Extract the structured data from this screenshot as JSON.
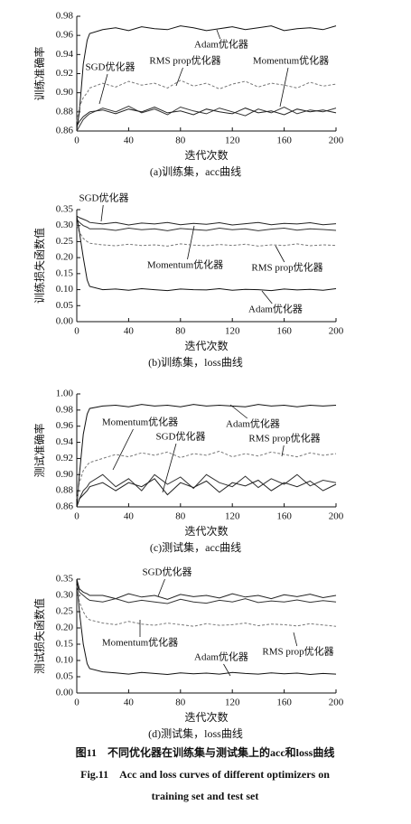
{
  "chart_data": [
    {
      "type": "line",
      "caption": "(a)训练集，acc曲线",
      "xlabel": "迭代次数",
      "ylabel": "训练准确率",
      "x": [
        0,
        2,
        5,
        8,
        10,
        20,
        30,
        40,
        50,
        60,
        70,
        80,
        90,
        100,
        110,
        120,
        130,
        140,
        150,
        160,
        170,
        180,
        190,
        200
      ],
      "xlim": [
        0,
        200
      ],
      "xticks": [
        0,
        40,
        80,
        120,
        160,
        200
      ],
      "ylim": [
        0.86,
        0.98
      ],
      "yticks": [
        0.86,
        0.88,
        {
          "value": 0.9,
          "label": "0.90"
        },
        0.92,
        0.94,
        0.96,
        0.98
      ],
      "series": [
        {
          "name": "Adam优化器",
          "color": "#111111",
          "style": "solid",
          "values": [
            0.862,
            0.88,
            0.93,
            0.955,
            0.962,
            0.966,
            0.968,
            0.965,
            0.969,
            0.967,
            0.966,
            0.97,
            0.968,
            0.965,
            0.967,
            0.969,
            0.966,
            0.968,
            0.97,
            0.965,
            0.967,
            0.968,
            0.966,
            0.97
          ]
        },
        {
          "name": "RMS prop优化器",
          "color": "#777777",
          "style": "dashed",
          "values": [
            0.87,
            0.885,
            0.895,
            0.9,
            0.905,
            0.91,
            0.906,
            0.912,
            0.908,
            0.91,
            0.905,
            0.913,
            0.907,
            0.91,
            0.904,
            0.909,
            0.912,
            0.906,
            0.91,
            0.908,
            0.905,
            0.911,
            0.907,
            0.909
          ]
        },
        {
          "name": "Momentum优化器",
          "color": "#333333",
          "style": "solid",
          "values": [
            0.86,
            0.865,
            0.872,
            0.876,
            0.878,
            0.884,
            0.88,
            0.886,
            0.879,
            0.883,
            0.877,
            0.885,
            0.881,
            0.878,
            0.884,
            0.88,
            0.876,
            0.883,
            0.879,
            0.885,
            0.878,
            0.882,
            0.88,
            0.884
          ]
        },
        {
          "name": "SGD优化器",
          "color": "#222222",
          "style": "solid",
          "values": [
            0.865,
            0.87,
            0.875,
            0.878,
            0.88,
            0.882,
            0.878,
            0.883,
            0.88,
            0.885,
            0.879,
            0.881,
            0.877,
            0.883,
            0.88,
            0.878,
            0.884,
            0.879,
            0.881,
            0.877,
            0.883,
            0.88,
            0.882,
            0.879
          ]
        }
      ]
    },
    {
      "type": "line",
      "caption": "(b)训练集，loss曲线",
      "xlabel": "迭代次数",
      "ylabel": "训练损失函数值",
      "x": [
        0,
        2,
        5,
        8,
        10,
        20,
        30,
        40,
        50,
        60,
        70,
        80,
        90,
        100,
        110,
        120,
        130,
        140,
        150,
        160,
        170,
        180,
        190,
        200
      ],
      "xlim": [
        0,
        200
      ],
      "xticks": [
        0,
        40,
        80,
        120,
        160,
        200
      ],
      "ylim": [
        0,
        0.35
      ],
      "yticks": [
        {
          "value": 0,
          "label": "0.00"
        },
        0.05,
        {
          "value": 0.1,
          "label": "0.10"
        },
        0.15,
        {
          "value": 0.2,
          "label": "0.20"
        },
        0.25,
        {
          "value": 0.3,
          "label": "0.30"
        },
        0.35
      ],
      "series": [
        {
          "name": "SGD优化器",
          "color": "#222222",
          "style": "solid",
          "values": [
            0.33,
            0.325,
            0.32,
            0.315,
            0.31,
            0.305,
            0.31,
            0.302,
            0.308,
            0.305,
            0.31,
            0.303,
            0.307,
            0.304,
            0.309,
            0.302,
            0.306,
            0.31,
            0.303,
            0.307,
            0.305,
            0.309,
            0.303,
            0.306
          ]
        },
        {
          "name": "Momentum优化器",
          "color": "#333333",
          "style": "solid",
          "values": [
            0.32,
            0.31,
            0.3,
            0.295,
            0.29,
            0.29,
            0.285,
            0.292,
            0.287,
            0.29,
            0.284,
            0.291,
            0.288,
            0.285,
            0.292,
            0.287,
            0.29,
            0.284,
            0.289,
            0.292,
            0.286,
            0.29,
            0.288,
            0.285
          ]
        },
        {
          "name": "RMS prop优化器",
          "color": "#777777",
          "style": "dashed",
          "values": [
            0.3,
            0.28,
            0.26,
            0.25,
            0.245,
            0.24,
            0.237,
            0.242,
            0.238,
            0.24,
            0.236,
            0.243,
            0.239,
            0.237,
            0.241,
            0.238,
            0.242,
            0.236,
            0.24,
            0.238,
            0.243,
            0.237,
            0.24,
            0.238
          ]
        },
        {
          "name": "Adam优化器",
          "color": "#111111",
          "style": "solid",
          "values": [
            0.33,
            0.28,
            0.2,
            0.13,
            0.11,
            0.1,
            0.102,
            0.098,
            0.103,
            0.1,
            0.097,
            0.102,
            0.1,
            0.099,
            0.103,
            0.098,
            0.101,
            0.1,
            0.097,
            0.102,
            0.099,
            0.101,
            0.098,
            0.103
          ]
        }
      ]
    },
    {
      "type": "line",
      "caption": "(c)测试集，acc曲线",
      "xlabel": "迭代次数",
      "ylabel": "测试准确率",
      "x": [
        0,
        2,
        5,
        8,
        10,
        20,
        30,
        40,
        50,
        60,
        70,
        80,
        90,
        100,
        110,
        120,
        130,
        140,
        150,
        160,
        170,
        180,
        190,
        200
      ],
      "xlim": [
        0,
        200
      ],
      "xticks": [
        0,
        40,
        80,
        120,
        160,
        200
      ],
      "ylim": [
        0.86,
        1.0
      ],
      "yticks": [
        0.86,
        0.88,
        {
          "value": 0.9,
          "label": "0.90"
        },
        0.92,
        0.94,
        0.96,
        0.98,
        {
          "value": 1,
          "label": "1.00"
        }
      ],
      "series": [
        {
          "name": "Momentum优化器",
          "color": "#333333",
          "style": "solid",
          "values": [
            0.86,
            0.87,
            0.88,
            0.885,
            0.89,
            0.9,
            0.885,
            0.895,
            0.88,
            0.9,
            0.888,
            0.897,
            0.883,
            0.9,
            0.89,
            0.885,
            0.898,
            0.884,
            0.895,
            0.888,
            0.9,
            0.886,
            0.893,
            0.89
          ]
        },
        {
          "name": "SGD优化器",
          "color": "#222222",
          "style": "solid",
          "values": [
            0.86,
            0.87,
            0.875,
            0.88,
            0.885,
            0.89,
            0.88,
            0.89,
            0.885,
            0.895,
            0.875,
            0.89,
            0.884,
            0.892,
            0.878,
            0.89,
            0.886,
            0.893,
            0.88,
            0.89,
            0.885,
            0.892,
            0.88,
            0.888
          ]
        },
        {
          "name": "Adam优化器",
          "color": "#111111",
          "style": "solid",
          "values": [
            0.86,
            0.9,
            0.95,
            0.975,
            0.982,
            0.985,
            0.986,
            0.984,
            0.987,
            0.985,
            0.986,
            0.984,
            0.987,
            0.985,
            0.986,
            0.985,
            0.984,
            0.987,
            0.985,
            0.986,
            0.984,
            0.986,
            0.985,
            0.986
          ]
        },
        {
          "name": "RMS prop优化器",
          "color": "#777777",
          "style": "dashed",
          "values": [
            0.87,
            0.89,
            0.905,
            0.912,
            0.915,
            0.92,
            0.925,
            0.922,
            0.927,
            0.924,
            0.928,
            0.921,
            0.926,
            0.924,
            0.929,
            0.922,
            0.926,
            0.923,
            0.928,
            0.925,
            0.922,
            0.927,
            0.924,
            0.926
          ]
        }
      ]
    },
    {
      "type": "line",
      "caption": "(d)测试集，loss曲线",
      "xlabel": "迭代次数",
      "ylabel": "测试损失函数值",
      "x": [
        0,
        2,
        5,
        8,
        10,
        20,
        30,
        40,
        50,
        60,
        70,
        80,
        90,
        100,
        110,
        120,
        130,
        140,
        150,
        160,
        170,
        180,
        190,
        200
      ],
      "xlim": [
        0,
        200
      ],
      "xticks": [
        0,
        40,
        80,
        120,
        160,
        200
      ],
      "ylim": [
        0,
        0.35
      ],
      "yticks": [
        {
          "value": 0,
          "label": "0.00"
        },
        0.05,
        {
          "value": 0.1,
          "label": "0.10"
        },
        0.15,
        {
          "value": 0.2,
          "label": "0.20"
        },
        0.25,
        {
          "value": 0.3,
          "label": "0.30"
        },
        0.35
      ],
      "series": [
        {
          "name": "SGD优化器",
          "color": "#222222",
          "style": "solid",
          "values": [
            0.35,
            0.32,
            0.31,
            0.305,
            0.3,
            0.3,
            0.29,
            0.305,
            0.295,
            0.3,
            0.288,
            0.303,
            0.296,
            0.3,
            0.292,
            0.305,
            0.295,
            0.3,
            0.29,
            0.302,
            0.296,
            0.304,
            0.293,
            0.3
          ]
        },
        {
          "name": "Momentum优化器",
          "color": "#333333",
          "style": "solid",
          "values": [
            0.34,
            0.31,
            0.3,
            0.29,
            0.285,
            0.28,
            0.29,
            0.278,
            0.285,
            0.28,
            0.275,
            0.288,
            0.28,
            0.276,
            0.285,
            0.28,
            0.29,
            0.278,
            0.283,
            0.28,
            0.286,
            0.279,
            0.284,
            0.28
          ]
        },
        {
          "name": "Adam优化器",
          "color": "#111111",
          "style": "solid",
          "values": [
            0.35,
            0.25,
            0.15,
            0.09,
            0.075,
            0.065,
            0.062,
            0.058,
            0.063,
            0.06,
            0.057,
            0.062,
            0.059,
            0.061,
            0.058,
            0.063,
            0.06,
            0.058,
            0.062,
            0.059,
            0.061,
            0.057,
            0.06,
            0.058
          ]
        },
        {
          "name": "RMS prop优化器",
          "color": "#777777",
          "style": "dashed",
          "values": [
            0.33,
            0.28,
            0.25,
            0.23,
            0.225,
            0.215,
            0.21,
            0.22,
            0.212,
            0.208,
            0.215,
            0.21,
            0.205,
            0.213,
            0.208,
            0.21,
            0.215,
            0.207,
            0.212,
            0.21,
            0.206,
            0.213,
            0.209,
            0.205
          ]
        }
      ]
    }
  ],
  "figure_caption": [
    "图11　不同优化器在训练集与测试集上的acc和loss曲线",
    "Fig.11　Acc and loss curves of different optimizers on",
    "training set and test set"
  ]
}
